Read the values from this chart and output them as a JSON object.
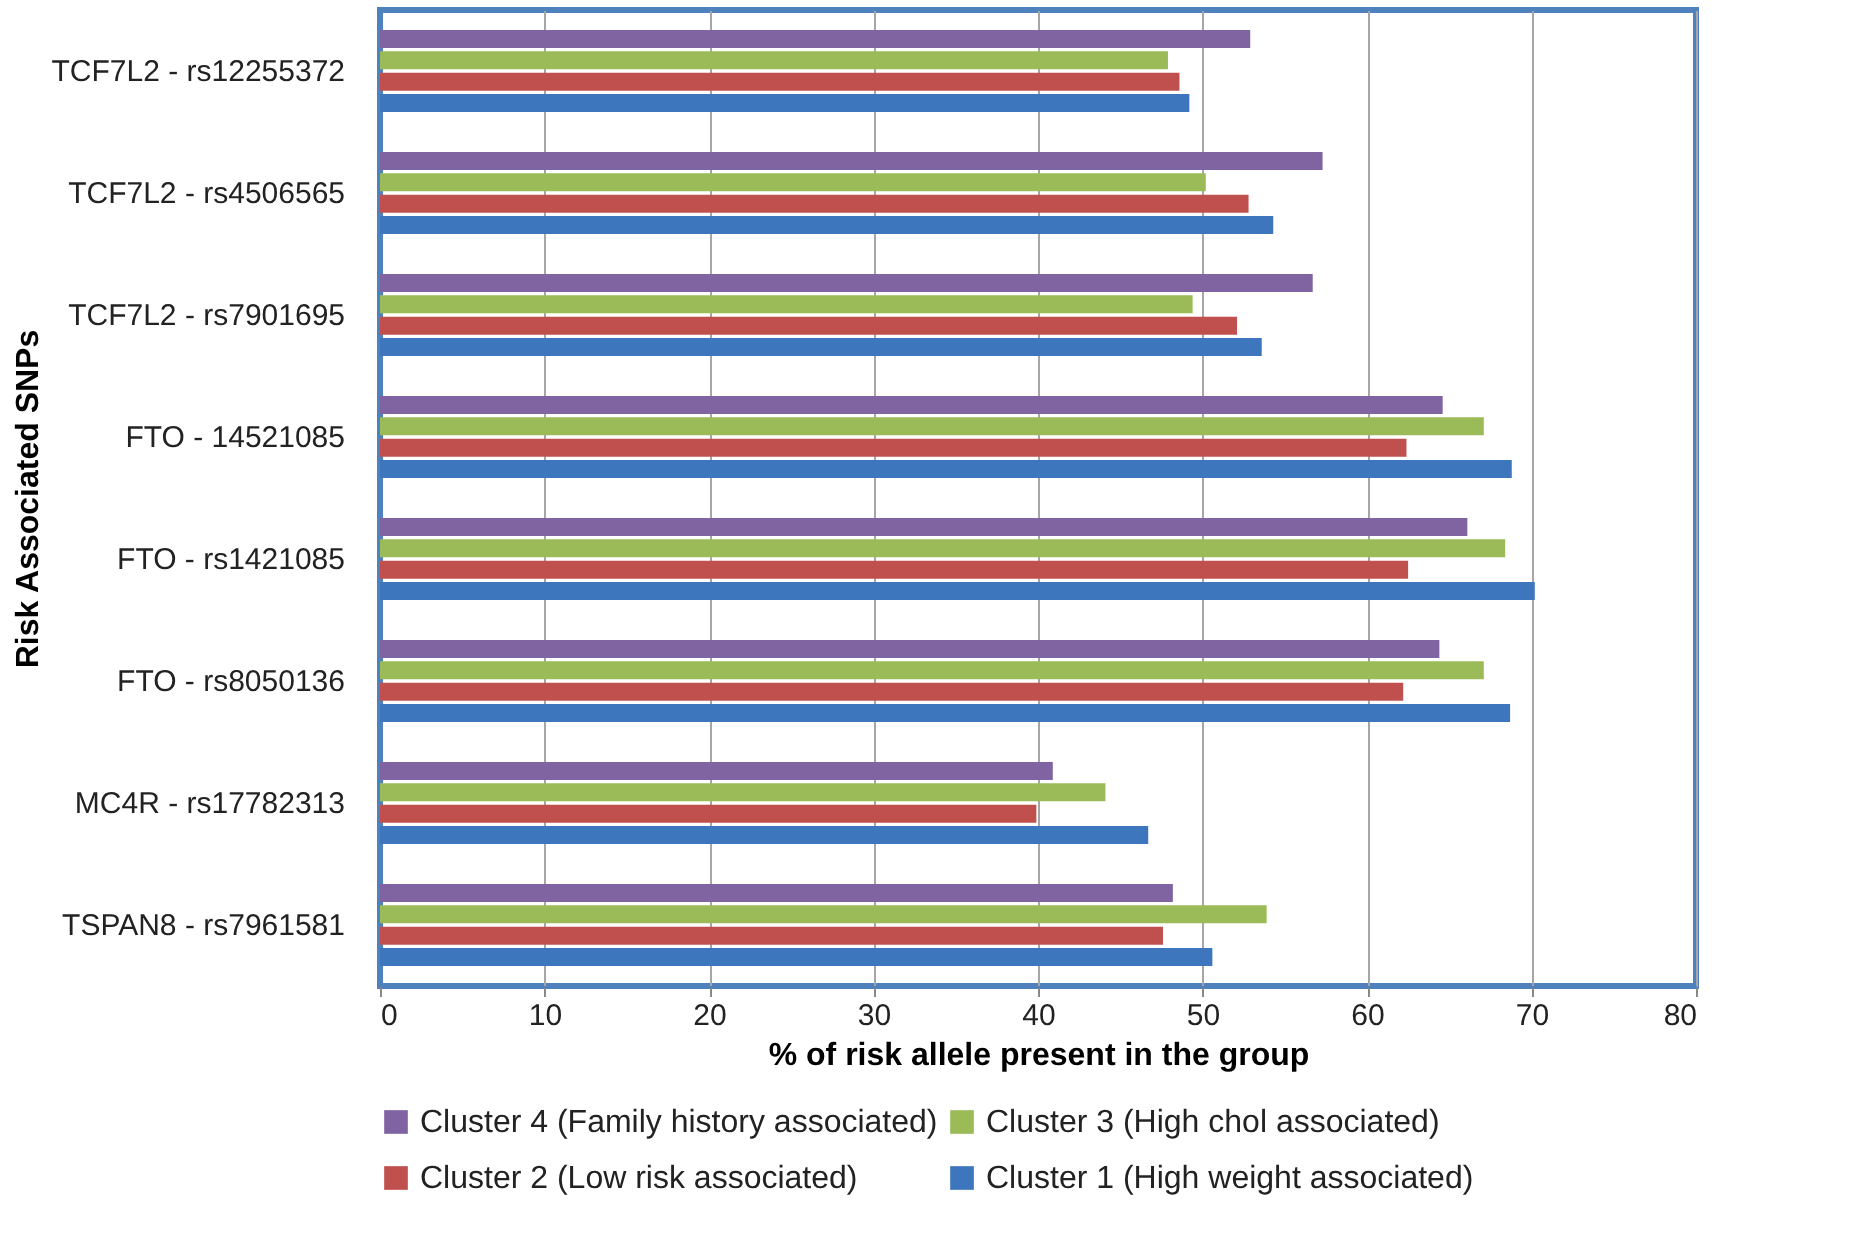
{
  "chart_data": {
    "type": "bar",
    "orientation": "horizontal",
    "xlabel": "% of risk allele present in the group",
    "ylabel": "Risk Associated SNPs",
    "categories": [
      "TCF7L2 - rs12255372",
      "TCF7L2 - rs4506565",
      "TCF7L2 - rs7901695",
      "FTO - 14521085",
      "FTO - rs1421085",
      "FTO - rs8050136",
      "MC4R - rs17782313",
      "TSPAN8 - rs7961581"
    ],
    "series": [
      {
        "name": "Cluster 4 (Family history associated)",
        "color": "#8064a2",
        "values": [
          52.9,
          57.3,
          56.7,
          64.6,
          66.1,
          64.4,
          40.9,
          48.2
        ]
      },
      {
        "name": "Cluster 3 (High chol associated)",
        "color": "#9bbb59",
        "values": [
          47.9,
          50.2,
          49.4,
          67.1,
          68.4,
          67.1,
          44.1,
          53.9
        ]
      },
      {
        "name": "Cluster 2 (Low risk associated)",
        "color": "#c0504d",
        "values": [
          48.6,
          52.8,
          52.1,
          62.4,
          62.5,
          62.2,
          39.9,
          47.6
        ]
      },
      {
        "name": "Cluster 1 (High weight associated)",
        "color": "#3d76bc",
        "values": [
          49.2,
          54.3,
          53.6,
          68.8,
          70.2,
          68.7,
          46.7,
          50.6
        ]
      }
    ],
    "xlim": [
      0,
      80
    ],
    "xticks": [
      0,
      10,
      20,
      30,
      40,
      50,
      60,
      70,
      80
    ],
    "grid": "x",
    "legend": "bottom"
  }
}
